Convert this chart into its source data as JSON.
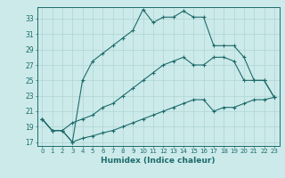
{
  "xlabel": "Humidex (Indice chaleur)",
  "xlim": [
    -0.5,
    23.5
  ],
  "ylim": [
    16.5,
    34.5
  ],
  "xticks": [
    0,
    1,
    2,
    3,
    4,
    5,
    6,
    7,
    8,
    9,
    10,
    11,
    12,
    13,
    14,
    15,
    16,
    17,
    18,
    19,
    20,
    21,
    22,
    23
  ],
  "yticks": [
    17,
    19,
    21,
    23,
    25,
    27,
    29,
    31,
    33
  ],
  "bg_color": "#cceaea",
  "line_color": "#1e6b6b",
  "grid_color": "#b0d4d4",
  "line1_y": [
    20.0,
    18.5,
    18.5,
    17.0,
    25.0,
    27.5,
    28.5,
    29.5,
    30.5,
    31.5,
    34.2,
    32.5,
    33.2,
    33.2,
    34.0,
    33.2,
    33.2,
    29.5,
    29.5,
    29.5,
    28.0,
    25.0,
    25.0,
    22.8
  ],
  "line2_y": [
    20.0,
    18.5,
    18.5,
    19.5,
    20.0,
    20.5,
    21.5,
    22.0,
    23.0,
    24.0,
    25.0,
    26.0,
    27.0,
    27.5,
    28.0,
    27.0,
    27.0,
    28.0,
    28.0,
    27.5,
    25.0,
    25.0,
    25.0,
    22.8
  ],
  "line3_y": [
    20.0,
    18.5,
    18.5,
    17.0,
    17.5,
    17.8,
    18.2,
    18.5,
    19.0,
    19.5,
    20.0,
    20.5,
    21.0,
    21.5,
    22.0,
    22.5,
    22.5,
    21.0,
    21.5,
    21.5,
    22.0,
    22.5,
    22.5,
    22.8
  ]
}
